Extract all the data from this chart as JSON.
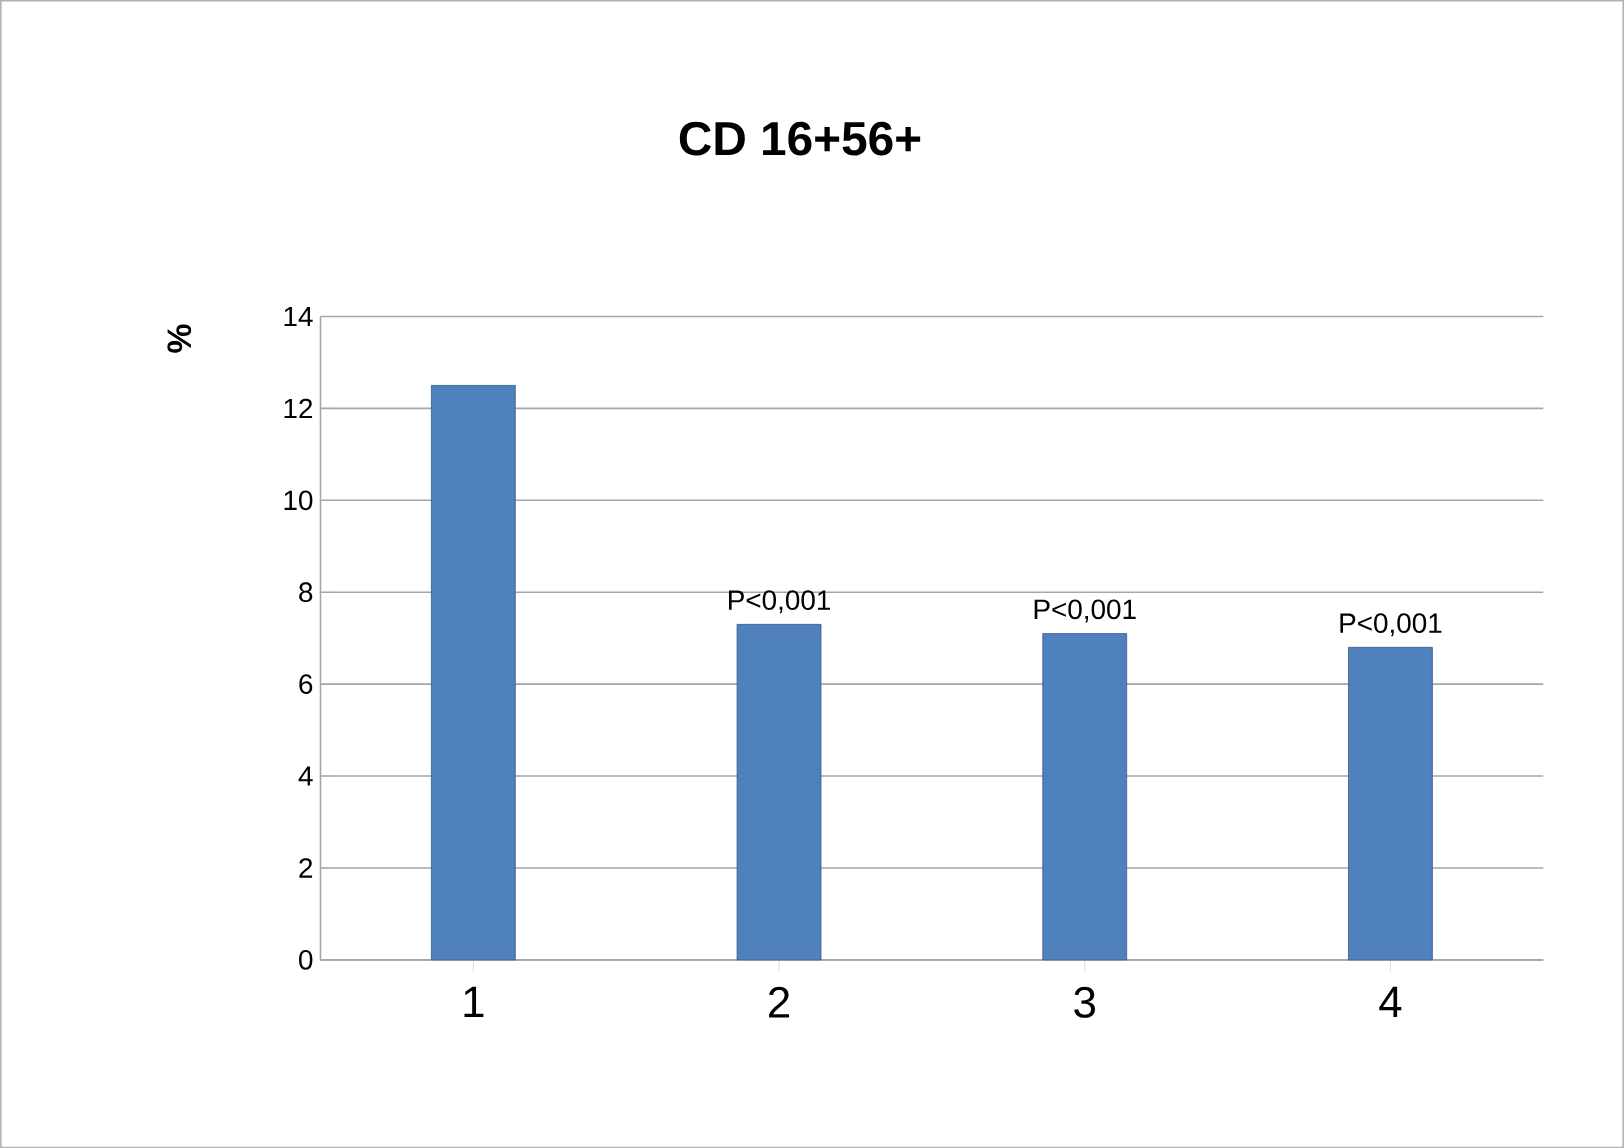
{
  "chart_data": {
    "type": "bar",
    "title": "CD 16+56+",
    "ylabel": "%",
    "categories": [
      "1",
      "2",
      "3",
      "4"
    ],
    "values": [
      12.5,
      7.3,
      7.1,
      6.8
    ],
    "color": "#4f81bd",
    "ylim": [
      0,
      14
    ],
    "yticks": [
      0,
      2,
      4,
      6,
      8,
      10,
      12,
      14
    ],
    "grid": "y",
    "annotations": [
      {
        "text": "P<0,001",
        "x": "2",
        "y": 7.3
      },
      {
        "text": "P<0,001",
        "x": "3",
        "y": 7.1
      },
      {
        "text": "P<0,001",
        "x": "4",
        "y": 6.8
      }
    ]
  }
}
